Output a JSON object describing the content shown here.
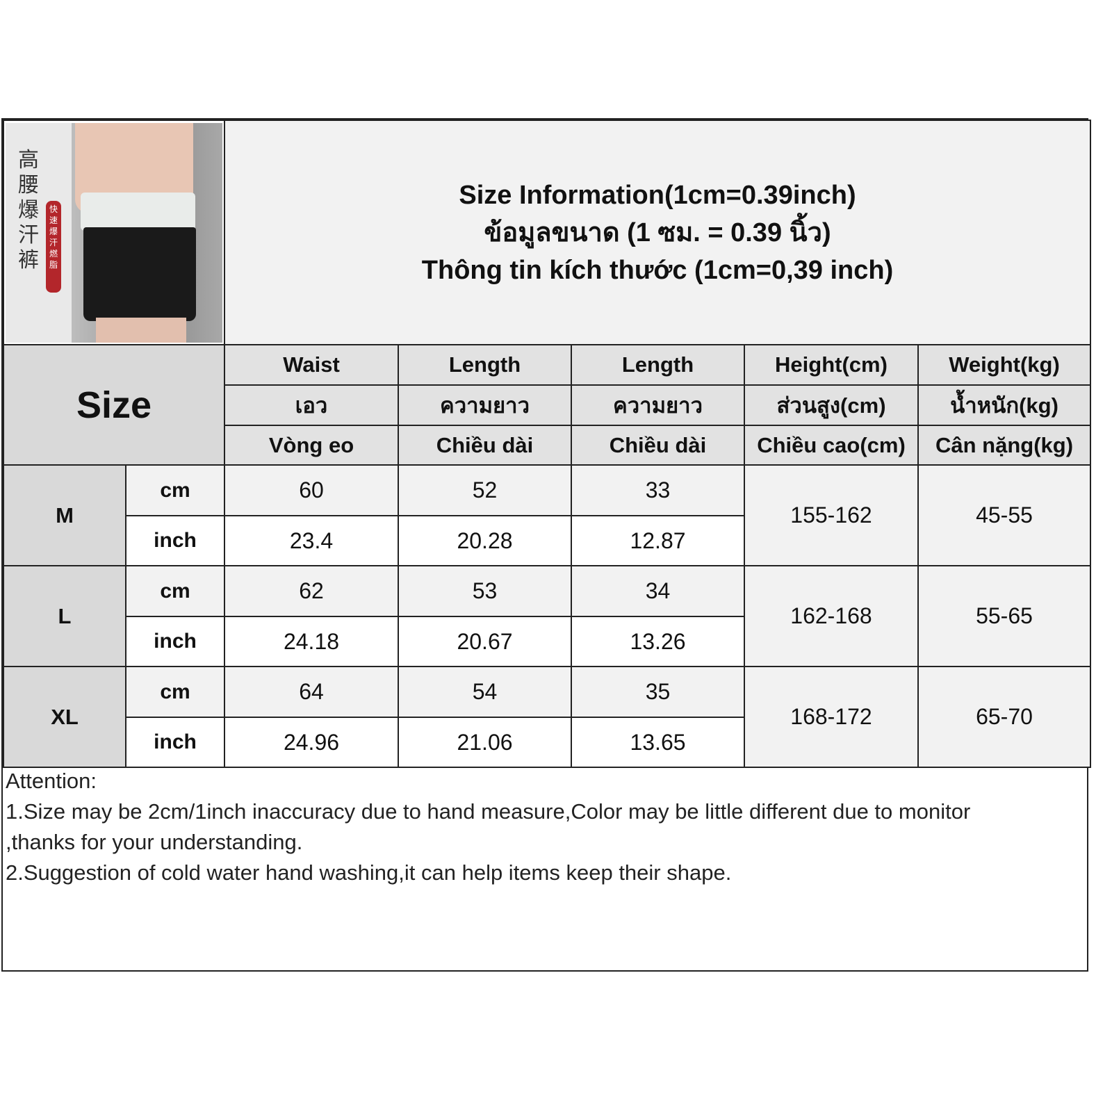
{
  "photo": {
    "chinese_text": "高腰爆汗裤",
    "badge_text": "快速爆汗燃脂"
  },
  "title": {
    "line1": "Size Information(1cm=0.39inch)",
    "line2": "ข้อมูลขนาด (1 ซม. = 0.39 นิ้ว)",
    "line3": "Thông tin kích thước (1cm=0,39 inch)"
  },
  "size_label": "Size",
  "columns": [
    {
      "en": "Waist",
      "th": "เอว",
      "vi": "Vòng eo"
    },
    {
      "en": "Length",
      "th": "ความยาว",
      "vi": "Chiều dài"
    },
    {
      "en": "Length",
      "th": "ความยาว",
      "vi": "Chiều dài"
    },
    {
      "en": "Height(cm)",
      "th": "ส่วนสูง(cm)",
      "vi": "Chiều cao(cm)"
    },
    {
      "en": "Weight(kg)",
      "th": "น้ำหนัก(kg)",
      "vi": "Cân nặng(kg)"
    }
  ],
  "rows": [
    {
      "size": "M",
      "cm_label": "cm",
      "inch_label": "inch",
      "cm": [
        "60",
        "52",
        "33"
      ],
      "inch": [
        "23.4",
        "20.28",
        "12.87"
      ],
      "height": "155-162",
      "weight": "45-55"
    },
    {
      "size": "L",
      "cm_label": "cm",
      "inch_label": "inch",
      "cm": [
        "62",
        "53",
        "34"
      ],
      "inch": [
        "24.18",
        "20.67",
        "13.26"
      ],
      "height": "162-168",
      "weight": "55-65"
    },
    {
      "size": "XL",
      "cm_label": "cm",
      "inch_label": "inch",
      "cm": [
        "64",
        "54",
        "35"
      ],
      "inch": [
        "24.96",
        "21.06",
        "13.65"
      ],
      "height": "168-172",
      "weight": "65-70"
    }
  ],
  "attention": {
    "heading": "Attention:",
    "line1": "1.Size may be 2cm/1inch inaccuracy due to hand measure,Color may be little different due to monitor",
    "line2": ",thanks for your understanding.",
    "line3": "2.Suggestion of cold water hand washing,it can help items keep their shape."
  }
}
